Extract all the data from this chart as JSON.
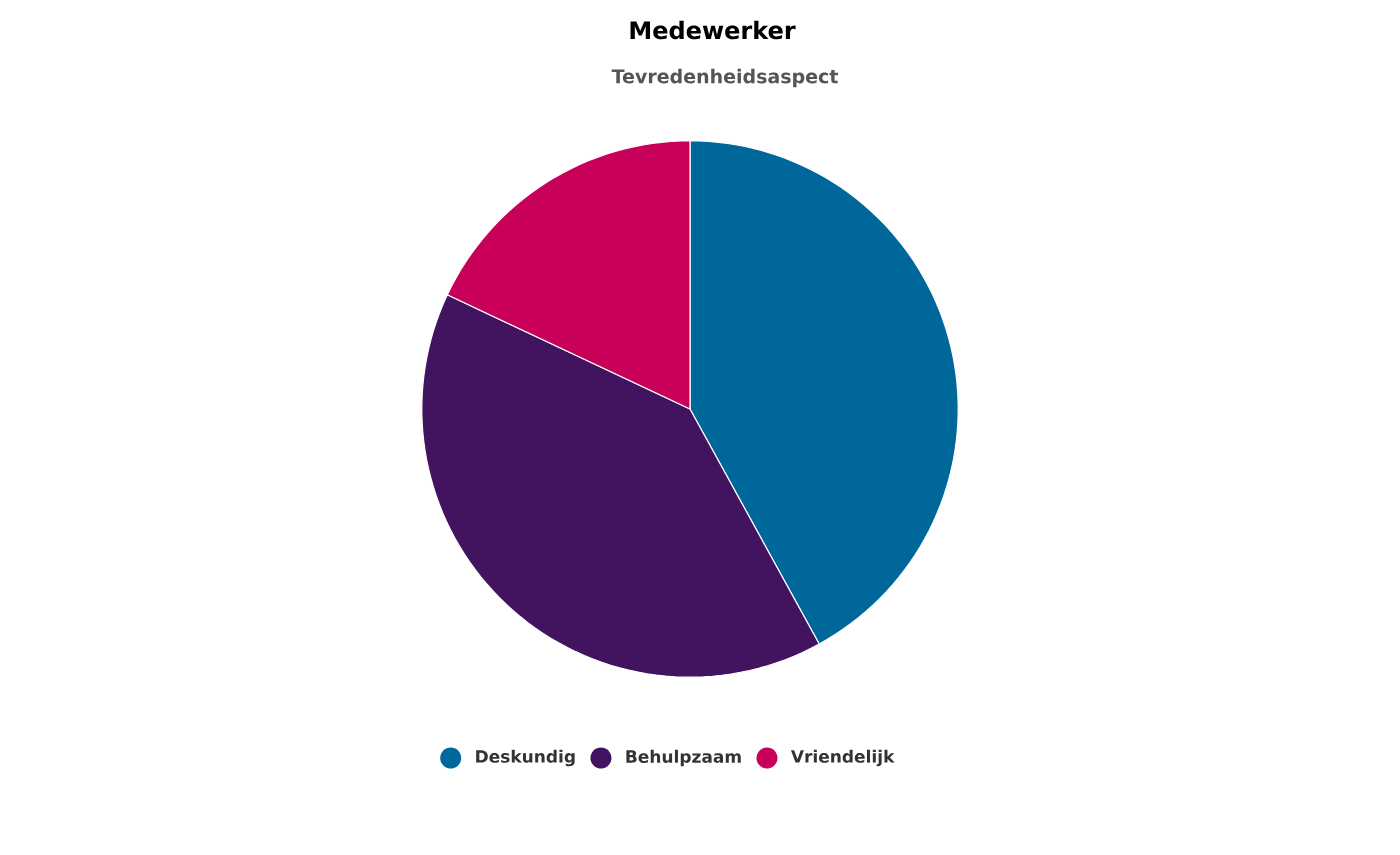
{
  "chart_data": {
    "type": "pie",
    "title": "Medewerker",
    "subtitle": "Tevredenheidsaspect",
    "categories": [
      "Deskundig",
      "Behulpzaam",
      "Vriendelijk"
    ],
    "values": [
      42,
      40,
      18
    ],
    "colors": [
      "#00679a",
      "#42145f",
      "#c8005a"
    ],
    "legend": "bottom"
  }
}
